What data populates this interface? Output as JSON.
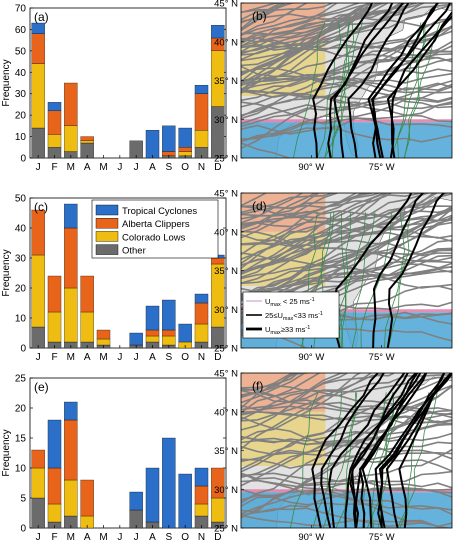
{
  "figure": {
    "months": [
      "J",
      "F",
      "M",
      "A",
      "M",
      "J",
      "J",
      "A",
      "S",
      "O",
      "N",
      "D"
    ],
    "month_label_colors": [
      "#000000",
      "#000000",
      "#000000",
      "#000000",
      "#000000",
      "#000000",
      "#000000",
      "#000000",
      "#000000",
      "#000000",
      "#000000",
      "#000000"
    ],
    "lat_labels": [
      "45° N",
      "40° N",
      "35° N",
      "30° N",
      "25° N"
    ],
    "lon_labels": [
      "90° W",
      "75° W"
    ],
    "bar_axis_label": "Frequency",
    "storm_colors": {
      "Tropical Cyclones": "#2b6fc8",
      "Alberta Clippers": "#e8641a",
      "Colorado Lows": "#efbd12",
      "Other": "#6b6b6b"
    },
    "intensity_legend": [
      {
        "label_pre": "U",
        "sub": "max",
        "label_post": " < 25 ms",
        "sup": "-1",
        "weight": "thin"
      },
      {
        "label_pre": "25≤U",
        "sub": "max",
        "label_post": "<33 ms",
        "sup": "-1",
        "weight": "medium"
      },
      {
        "label_pre": "U",
        "sub": "max",
        "label_post": "≥33 ms",
        "sup": "-1",
        "weight": "thick"
      }
    ],
    "region_colors": {
      "clipper_region": "#f0a07a",
      "colorado_region": "#e8d070",
      "tropical_region": "#4aa6d6",
      "pink_band": "#e07aa8"
    }
  },
  "chart_data": [
    {
      "panel": "(a)",
      "type": "bar",
      "stacked": true,
      "categories": [
        "J",
        "F",
        "M",
        "A",
        "M",
        "J",
        "J",
        "A",
        "S",
        "O",
        "N",
        "D"
      ],
      "ylabel": "Frequency",
      "ylim": [
        0,
        70
      ],
      "yticks": [
        0,
        10,
        20,
        30,
        40,
        50,
        60,
        70
      ],
      "series": [
        {
          "name": "Other",
          "values": [
            14,
            5,
            3,
            7,
            0,
            0,
            8,
            0,
            1,
            1,
            5,
            24
          ]
        },
        {
          "name": "Colorado Lows",
          "values": [
            30,
            6,
            12,
            1,
            0,
            0,
            0,
            0,
            0,
            2,
            8,
            26
          ]
        },
        {
          "name": "Alberta Clippers",
          "values": [
            14,
            11,
            20,
            2,
            0,
            0,
            0,
            0,
            2,
            2,
            17,
            6
          ]
        },
        {
          "name": "Tropical Cyclones",
          "values": [
            5,
            4,
            0,
            0,
            0,
            0,
            0,
            13,
            12,
            9,
            4,
            6
          ]
        }
      ]
    },
    {
      "panel": "(c)",
      "type": "bar",
      "stacked": true,
      "categories": [
        "J",
        "F",
        "M",
        "A",
        "M",
        "J",
        "J",
        "A",
        "S",
        "O",
        "N",
        "D"
      ],
      "ylabel": "Frequency",
      "ylim": [
        0,
        50
      ],
      "yticks": [
        0,
        10,
        20,
        30,
        40,
        50
      ],
      "legend": [
        "Tropical Cyclones",
        "Alberta Clippers",
        "Colorado Lows",
        "Other"
      ],
      "series": [
        {
          "name": "Other",
          "values": [
            7,
            2,
            2,
            2,
            1,
            0,
            1,
            2,
            1,
            0,
            2,
            7
          ]
        },
        {
          "name": "Colorado Lows",
          "values": [
            24,
            10,
            18,
            10,
            2,
            0,
            0,
            2,
            3,
            2,
            6,
            21
          ]
        },
        {
          "name": "Alberta Clippers",
          "values": [
            15,
            12,
            20,
            12,
            3,
            0,
            0,
            2,
            2,
            0,
            7,
            2
          ]
        },
        {
          "name": "Tropical Cyclones",
          "values": [
            0,
            0,
            8,
            0,
            0,
            0,
            4,
            8,
            10,
            6,
            3,
            1
          ]
        }
      ]
    },
    {
      "panel": "(e)",
      "type": "bar",
      "stacked": true,
      "categories": [
        "J",
        "F",
        "M",
        "A",
        "M",
        "J",
        "J",
        "A",
        "S",
        "O",
        "N",
        "D"
      ],
      "ylabel": "Frequency",
      "ylim": [
        0,
        25
      ],
      "yticks": [
        0,
        5,
        10,
        15,
        20,
        25
      ],
      "series": [
        {
          "name": "Other",
          "values": [
            5,
            1,
            2,
            0,
            0,
            0,
            3,
            1,
            0,
            0,
            2,
            1
          ]
        },
        {
          "name": "Colorado Lows",
          "values": [
            5,
            3,
            6,
            2,
            0,
            0,
            0,
            0,
            0,
            0,
            2,
            4
          ]
        },
        {
          "name": "Alberta Clippers",
          "values": [
            3,
            6,
            10,
            6,
            0,
            0,
            0,
            0,
            0,
            0,
            3,
            5
          ]
        },
        {
          "name": "Tropical Cyclones",
          "values": [
            0,
            8,
            3,
            0,
            0,
            0,
            3,
            9,
            15,
            9,
            3,
            0
          ]
        }
      ]
    }
  ],
  "map_panels": [
    {
      "panel": "(b)"
    },
    {
      "panel": "(d)",
      "has_legend": true
    },
    {
      "panel": "(f)"
    }
  ]
}
